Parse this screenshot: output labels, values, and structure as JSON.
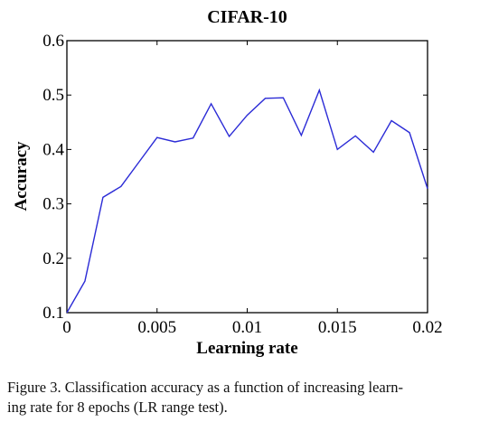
{
  "chart_data": {
    "type": "line",
    "title": "CIFAR-10",
    "xlabel": "Learning rate",
    "ylabel": "Accuracy",
    "xlim": [
      0,
      0.02
    ],
    "ylim": [
      0.1,
      0.6
    ],
    "xticks": [
      0,
      0.005,
      0.01,
      0.015,
      0.02
    ],
    "xtick_labels": [
      "0",
      "0.005",
      "0.01",
      "0.015",
      "0.02"
    ],
    "yticks": [
      0.1,
      0.2,
      0.3,
      0.4,
      0.5,
      0.6
    ],
    "ytick_labels": [
      "0.1",
      "0.2",
      "0.3",
      "0.4",
      "0.5",
      "0.6"
    ],
    "grid": false,
    "legend": "none",
    "series": [
      {
        "color": "#2b2bd6",
        "x": [
          0,
          0.001,
          0.002,
          0.003,
          0.004,
          0.005,
          0.006,
          0.007,
          0.008,
          0.009,
          0.01,
          0.011,
          0.012,
          0.013,
          0.014,
          0.015,
          0.016,
          0.017,
          0.018,
          0.019,
          0.02
        ],
        "y": [
          0.1,
          0.158,
          0.312,
          0.332,
          0.377,
          0.422,
          0.414,
          0.421,
          0.484,
          0.424,
          0.463,
          0.494,
          0.495,
          0.426,
          0.509,
          0.4,
          0.425,
          0.395,
          0.453,
          0.431,
          0.328
        ]
      }
    ]
  },
  "caption": {
    "line1": "Figure 3. Classification accuracy as a function of increasing learn-",
    "line2": "ing rate for 8 epochs (LR range test)."
  }
}
